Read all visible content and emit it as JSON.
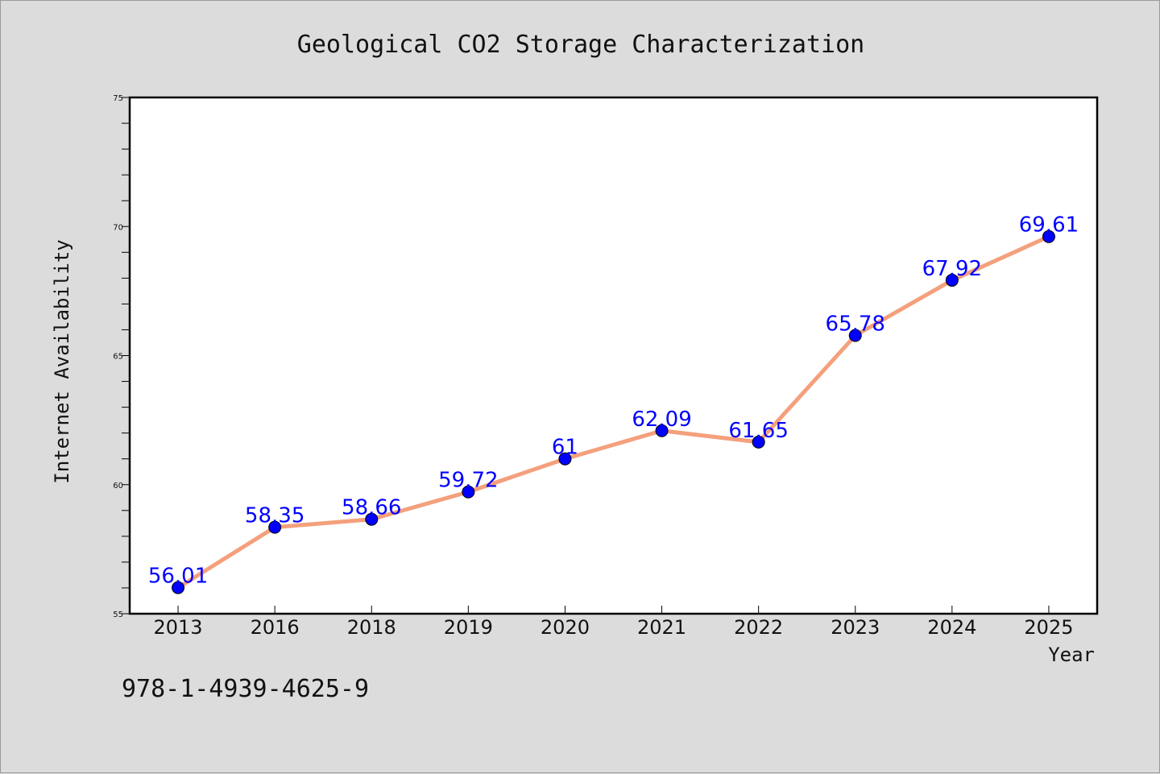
{
  "figure": {
    "background": "#dcdcdc",
    "footnote": "978-1-4939-4625-9"
  },
  "chart_data": {
    "type": "line",
    "title": "Geological CO2 Storage Characterization",
    "xlabel": "Year",
    "ylabel": "Internet Availability",
    "categories": [
      "2013",
      "2016",
      "2018",
      "2019",
      "2020",
      "2021",
      "2022",
      "2023",
      "2024",
      "2025"
    ],
    "values": [
      56.01,
      58.35,
      58.66,
      59.72,
      61,
      62.09,
      61.65,
      65.78,
      67.92,
      69.61
    ],
    "data_labels": [
      "56.01",
      "58.35",
      "58.66",
      "59.72",
      "61",
      "62.09",
      "61.65",
      "65.78",
      "67.92",
      "69.61"
    ],
    "ylim": [
      55,
      75
    ],
    "yticks": [
      55,
      60,
      65,
      70,
      75
    ],
    "grid": false,
    "line_color": "#f4a07c",
    "marker_color": "#0000ff",
    "label_color": "#0000ff",
    "plot_background": "#ffffff"
  }
}
